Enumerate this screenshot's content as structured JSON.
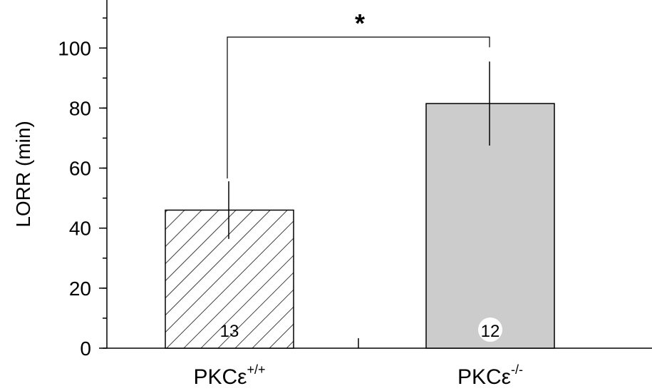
{
  "chart_data": {
    "type": "bar",
    "y_label": "LORR (min)",
    "categories": [
      {
        "base": "PKCε",
        "sup": "+/+"
      },
      {
        "base": "PKCε",
        "sup": "-/-"
      }
    ],
    "values": [
      46,
      81.5
    ],
    "errors": [
      9.6,
      14
    ],
    "n_labels": [
      13,
      12
    ],
    "fills": [
      "hatch",
      "#cccccc"
    ],
    "annotation": "*",
    "ylim": [
      0,
      116
    ],
    "yticks": [
      0,
      20,
      40,
      60,
      80,
      100
    ],
    "minor_step": 10
  }
}
